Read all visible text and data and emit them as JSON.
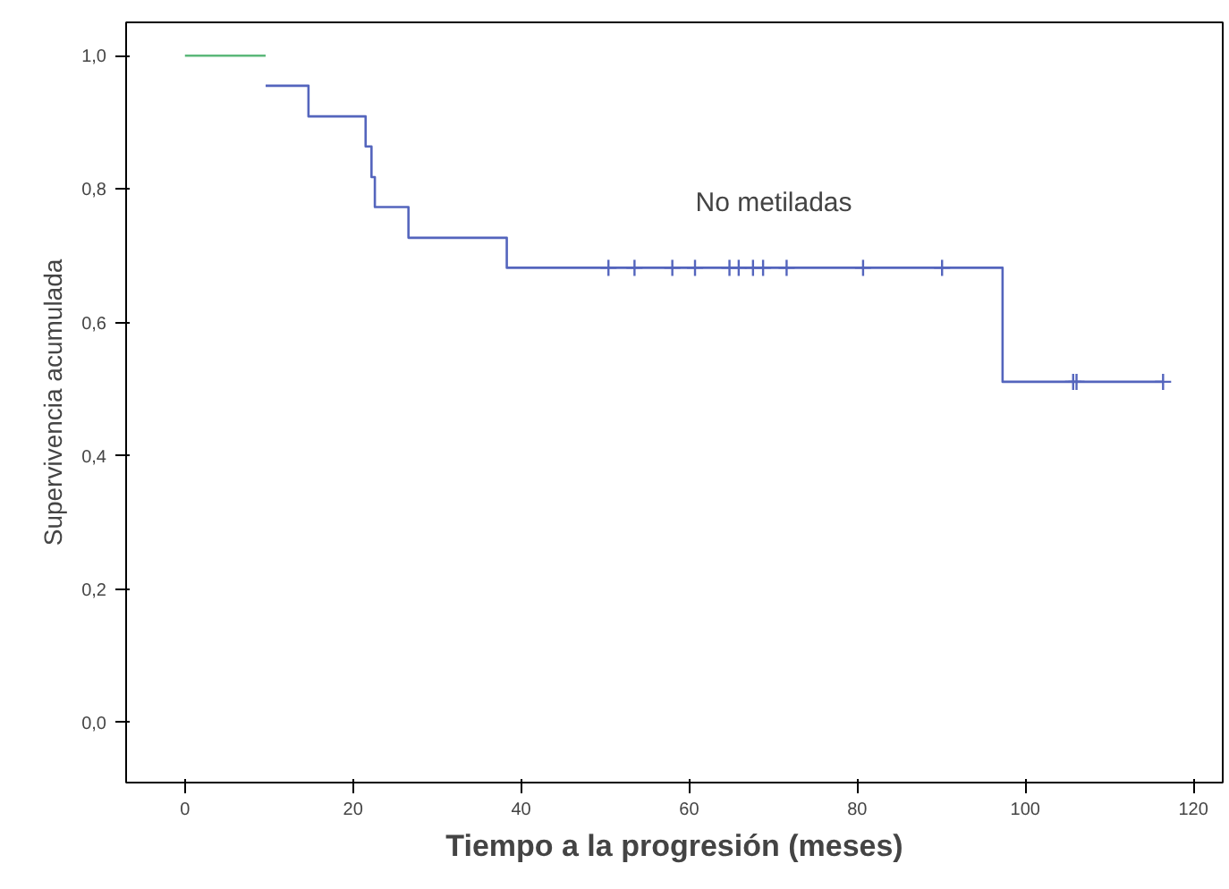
{
  "chart_data": {
    "type": "step",
    "xlabel": "Tiempo a la progresión (meses)",
    "ylabel": "Supervivencia acumulada",
    "annotations": [
      "No metiladas"
    ],
    "series": [
      {
        "color": "#5cb87a",
        "x": [
          0,
          9.6
        ],
        "values": [
          1.0,
          1.0
        ],
        "marker": "none"
      },
      {
        "color": "#5465bd",
        "x": [
          9.6,
          14.7,
          21.5,
          22.2,
          22.6,
          26.6,
          38.3,
          97.3,
          116.4
        ],
        "values": [
          0.955,
          0.909,
          0.864,
          0.818,
          0.773,
          0.727,
          0.682,
          0.511,
          0.511
        ],
        "marker": "none"
      },
      {
        "type": "scatter",
        "color": "#5465bd",
        "marker": "cross",
        "x": [
          50.4,
          53.5,
          58.0,
          60.7,
          64.8,
          65.9,
          67.6,
          68.8,
          71.6,
          80.7,
          90.1,
          105.7,
          106.1,
          116.4
        ],
        "values": [
          0.682,
          0.682,
          0.682,
          0.682,
          0.682,
          0.682,
          0.682,
          0.682,
          0.682,
          0.682,
          0.682,
          0.511,
          0.511,
          0.511
        ]
      }
    ],
    "xlim": [
      -7,
      123.5
    ],
    "ylim": [
      -0.09,
      1.05
    ],
    "xticks": [
      0,
      20,
      40,
      60,
      80,
      100,
      120
    ],
    "yticks": [
      {
        "value": 0,
        "label": "0,0"
      },
      {
        "value": 0.2,
        "label": "0,2"
      },
      {
        "value": 0.4,
        "label": "0,4"
      },
      {
        "value": 0.6,
        "label": "0,6"
      },
      {
        "value": 0.8,
        "label": "0,8"
      },
      {
        "value": 1.0,
        "label": "1,0"
      }
    ],
    "grid": false
  }
}
